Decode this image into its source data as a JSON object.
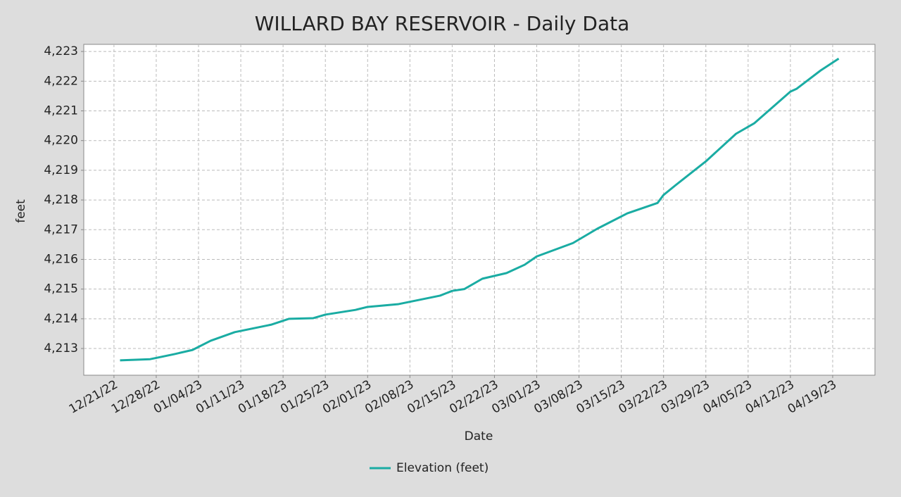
{
  "chart_data": {
    "type": "line",
    "title": "WILLARD BAY RESERVOIR - Daily Data",
    "x_label": "Date",
    "y_label": "feet",
    "x": [
      "12/22/22",
      "12/27/22",
      "12/31/22",
      "01/03/23",
      "01/06/23",
      "01/10/23",
      "01/16/23",
      "01/19/23",
      "01/23/23",
      "01/25/23",
      "01/30/23",
      "02/01/23",
      "02/06/23",
      "02/13/23",
      "02/15/23",
      "02/17/23",
      "02/20/23",
      "02/24/23",
      "02/27/23",
      "03/01/23",
      "03/07/23",
      "03/11/23",
      "03/16/23",
      "03/21/23",
      "03/22/23",
      "03/24/23",
      "03/29/23",
      "04/03/23",
      "04/06/23",
      "04/12/23",
      "04/13/23",
      "04/17/23",
      "04/20/23"
    ],
    "series": [
      {
        "name": "Elevation (feet)",
        "color": "#1aaca3",
        "values": [
          4212.6,
          4212.64,
          4212.81,
          4212.95,
          4213.26,
          4213.55,
          4213.8,
          4214.0,
          4214.02,
          4214.14,
          4214.3,
          4214.4,
          4214.49,
          4214.78,
          4214.94,
          4215.0,
          4215.35,
          4215.54,
          4215.82,
          4216.1,
          4216.55,
          4217.03,
          4217.55,
          4217.9,
          4218.17,
          4218.5,
          4219.3,
          4220.23,
          4220.58,
          4221.65,
          4221.74,
          4222.36,
          4222.76
        ]
      }
    ],
    "xlim": [
      "12/16/22",
      "04/26/23"
    ],
    "xticks": [
      "12/21/22",
      "12/28/22",
      "01/04/23",
      "01/11/23",
      "01/18/23",
      "01/25/23",
      "02/01/23",
      "02/08/23",
      "02/15/23",
      "02/22/23",
      "03/01/23",
      "03/08/23",
      "03/15/23",
      "03/22/23",
      "03/29/23",
      "04/05/23",
      "04/12/23",
      "04/19/23"
    ],
    "ylim": [
      4212.1,
      4223.24
    ],
    "yticks": [
      {
        "value": 4213,
        "label": "4,213"
      },
      {
        "value": 4214,
        "label": "4,214"
      },
      {
        "value": 4215,
        "label": "4,215"
      },
      {
        "value": 4216,
        "label": "4,216"
      },
      {
        "value": 4217,
        "label": "4,217"
      },
      {
        "value": 4218,
        "label": "4,218"
      },
      {
        "value": 4219,
        "label": "4,219"
      },
      {
        "value": 4220,
        "label": "4,220"
      },
      {
        "value": 4221,
        "label": "4,221"
      },
      {
        "value": 4222,
        "label": "4,222"
      },
      {
        "value": 4223,
        "label": "4,223"
      }
    ],
    "grid": true,
    "legend": "bottom"
  }
}
